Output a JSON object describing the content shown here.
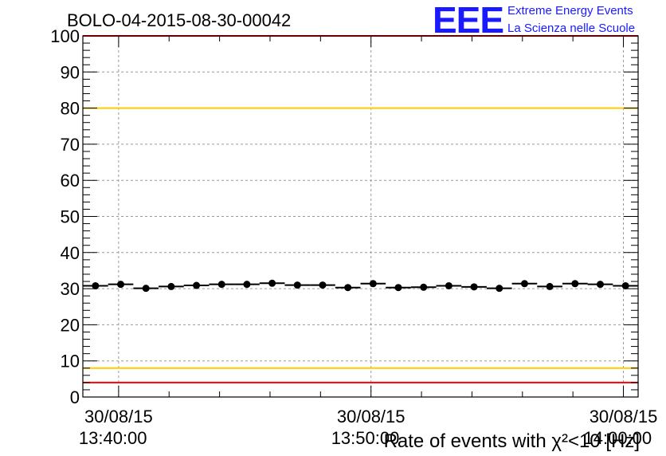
{
  "run_title": "BOLO-04-2015-08-30-00042",
  "logo": {
    "mark": "EEE",
    "line1": "Extreme Energy Events",
    "line2": "La Scienza nelle Scuole",
    "color": "#1a1aff"
  },
  "chart_data": {
    "type": "scatter",
    "title": "BOLO-04-2015-08-30-00042",
    "xlabel": "Rate of events with χ²<10 [Hz]",
    "ylabel": "",
    "ylim": [
      0,
      100
    ],
    "grid": true,
    "y_ticks": [
      "0",
      "10",
      "20",
      "30",
      "40",
      "50",
      "60",
      "70",
      "80",
      "90",
      "100"
    ],
    "x_ticks": [
      {
        "date": "30/08/15",
        "time": "13:40:00"
      },
      {
        "date": "30/08/15",
        "time": "13:50:00"
      },
      {
        "date": "30/08/15",
        "time": "14:00:00"
      }
    ],
    "x_range": [
      "13:38:35",
      "14:00:35"
    ],
    "bin_width_seconds": 60,
    "series": [
      {
        "x": [
          "13:39:05",
          "13:40:05",
          "13:41:05",
          "13:42:05",
          "13:43:05",
          "13:44:05",
          "13:45:05",
          "13:46:05",
          "13:47:05",
          "13:48:05",
          "13:49:05",
          "13:50:05",
          "13:51:05",
          "13:52:05",
          "13:53:05",
          "13:54:05",
          "13:55:05",
          "13:56:05",
          "13:57:05",
          "13:58:05",
          "13:59:05",
          "14:00:05"
        ],
        "y": [
          30.8,
          31.2,
          30.1,
          30.6,
          30.9,
          31.2,
          31.2,
          31.5,
          31.0,
          31.0,
          30.3,
          31.4,
          30.3,
          30.4,
          30.8,
          30.5,
          30.1,
          31.4,
          30.6,
          31.4,
          31.2,
          30.8
        ],
        "color": "#000000"
      }
    ],
    "reference_lines": [
      {
        "y": 100,
        "color": "#ff0000"
      },
      {
        "y": 80,
        "color": "#ffcc00"
      },
      {
        "y": 8,
        "color": "#ffcc00"
      },
      {
        "y": 4,
        "color": "#ff0000"
      }
    ]
  }
}
